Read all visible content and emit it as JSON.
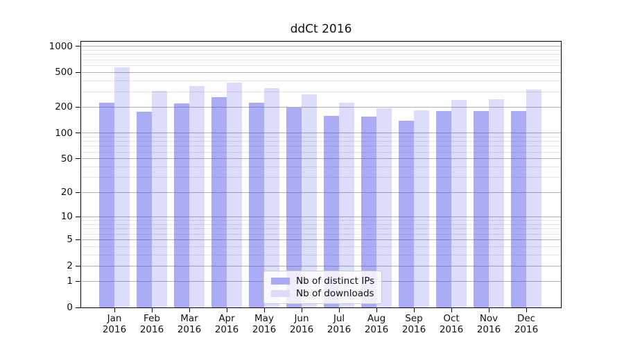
{
  "chart_data": {
    "type": "bar",
    "title": "ddCt 2016",
    "categories": [
      "Jan 2016",
      "Feb 2016",
      "Mar 2016",
      "Apr 2016",
      "May 2016",
      "Jun 2016",
      "Jul 2016",
      "Aug 2016",
      "Sep 2016",
      "Oct 2016",
      "Nov 2016",
      "Dec 2016"
    ],
    "x_tick_months": [
      "Jan",
      "Feb",
      "Mar",
      "Apr",
      "May",
      "Jun",
      "Jul",
      "Aug",
      "Sep",
      "Oct",
      "Nov",
      "Dec"
    ],
    "x_tick_year": "2016",
    "series": [
      {
        "name": "Nb of distinct IPs",
        "color": "#a9a9f4",
        "fill": "rgba(70,70,235,0.45)",
        "values": [
          224,
          177,
          220,
          261,
          224,
          198,
          159,
          155,
          138,
          180,
          178,
          180
        ]
      },
      {
        "name": "Nb of downloads",
        "color": "#dcdcfa",
        "fill": "rgba(70,70,235,0.19)",
        "values": [
          569,
          304,
          348,
          382,
          327,
          277,
          226,
          195,
          184,
          243,
          246,
          318
        ]
      }
    ],
    "yscale": "log10(1+y)",
    "yticks": [
      0,
      1,
      2,
      5,
      10,
      20,
      50,
      100,
      200,
      500,
      1000
    ],
    "ylim": [
      0,
      1120
    ],
    "grid": {
      "major_color": "#b0b0b0",
      "minor_color": "#e3e3e3",
      "minor_subs": [
        3,
        4,
        6,
        7,
        8,
        9
      ],
      "minor_decades": [
        1,
        10,
        100
      ]
    },
    "axis_color": "#000000",
    "text_color": "#111111",
    "legend_position": "inside-bottom-center"
  }
}
